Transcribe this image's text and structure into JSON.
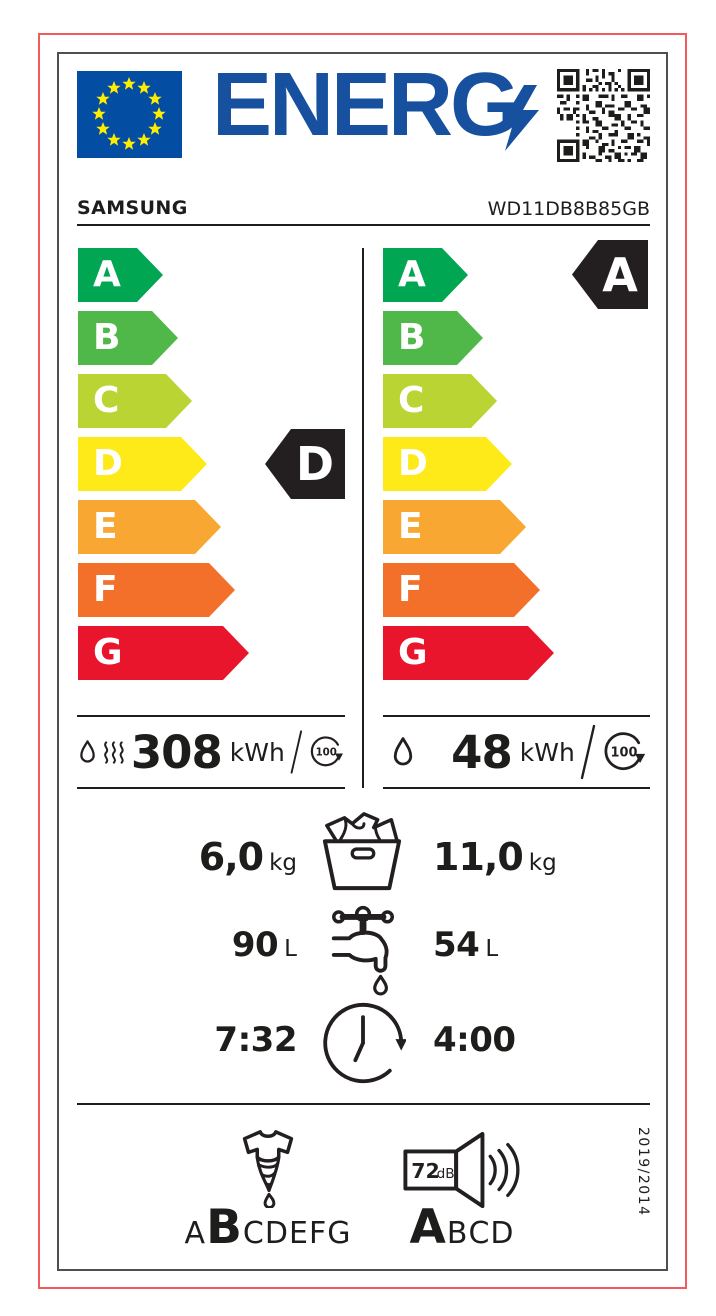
{
  "logo": {
    "text": "ENERG"
  },
  "brand": {
    "name": "SAMSUNG",
    "model": "WD11DB8B85GB"
  },
  "scale": {
    "classes": [
      {
        "label": "A",
        "color": "#00a651"
      },
      {
        "label": "B",
        "color": "#50b848"
      },
      {
        "label": "C",
        "color": "#b9d433"
      },
      {
        "label": "D",
        "color": "#fdea18"
      },
      {
        "label": "E",
        "color": "#f8a832"
      },
      {
        "label": "F",
        "color": "#f2702a"
      },
      {
        "label": "G",
        "color": "#e9152c"
      }
    ]
  },
  "ratings": {
    "combined": "D",
    "wash": "A"
  },
  "consumption": {
    "combined": {
      "value": "308",
      "unit": "kWh",
      "cycles": "100"
    },
    "wash": {
      "value": "48",
      "unit": "kWh",
      "cycles": "100"
    }
  },
  "capacity": {
    "combined": "6,0",
    "wash": "11,0",
    "unit": "kg"
  },
  "water": {
    "combined": "90",
    "wash": "54",
    "unit": "L"
  },
  "duration": {
    "combined": "7:32",
    "wash": "4:00"
  },
  "spin": {
    "letters": [
      "A",
      "B",
      "C",
      "D",
      "E",
      "F",
      "G"
    ],
    "rated": "B"
  },
  "noise": {
    "value": "72",
    "unit": "dB",
    "letters": [
      "A",
      "B",
      "C",
      "D"
    ],
    "rated": "A"
  },
  "regulation": "2019/2014",
  "icons": {
    "eu-flag": "blue rectangle with 12 yellow stars in a circle",
    "lightning-bolt": "blue bolt forming Y of ENERGY",
    "qr-code": "black qr matrix",
    "water-drop": "teardrop outline",
    "heat-waves": "three wavy vertical lines",
    "per-100-cycles": "circular arrow with 100 inside",
    "laundry-basket": "basket filled with clothes",
    "water-tap": "faucet with dripping drop",
    "cycle-duration": "clock with clockwise arrow",
    "spin-dry": "wrung shirt with drop",
    "noise-speaker": "speaker with sound waves and dB value"
  },
  "colors": {
    "text": "#1d1d1b",
    "logo_blue": "#17509e",
    "flag_blue": "#034ea2",
    "star_yellow": "#ffed00",
    "border_red": "#f15b5e",
    "border_gray": "#4f4f51",
    "indicator_black": "#231f20"
  }
}
